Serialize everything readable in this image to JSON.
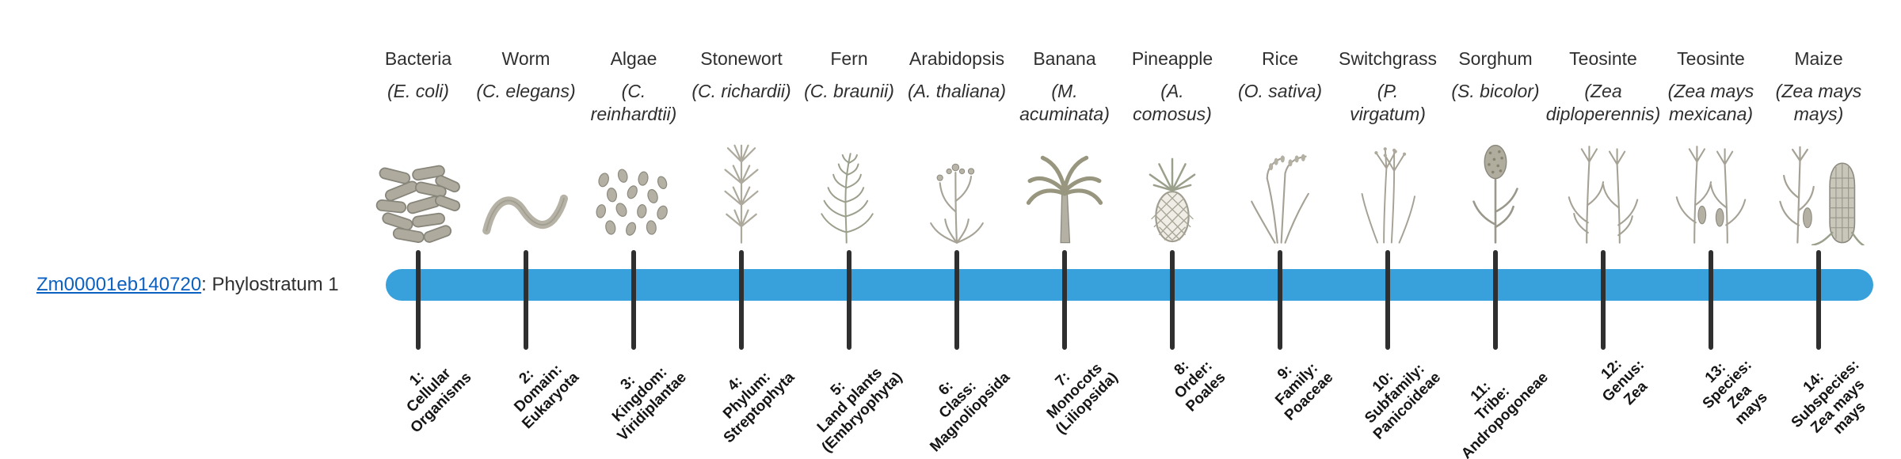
{
  "gene": {
    "id": "Zm00001eb140720",
    "suffix": ": Phylostratum 1"
  },
  "colors": {
    "bar": "#38a1dc",
    "tick": "#2f2f2f",
    "link": "#0b61c2",
    "name-text": "#2f2f2f",
    "stratum-text": "#151515"
  },
  "taxa": [
    {
      "common": "Bacteria",
      "scientific": "(E. coli)",
      "icon": "bacteria-icon",
      "stratum": "1:\nCellular\nOrganisms"
    },
    {
      "common": "Worm",
      "scientific": "(C. elegans)",
      "icon": "worm-icon",
      "stratum": "2:\nDomain:\nEukaryota"
    },
    {
      "common": "Algae",
      "scientific": "(C.\nreinhardtii)",
      "icon": "algae-icon",
      "stratum": "3:\nKingdom:\nViridiplantae"
    },
    {
      "common": "Stonewort",
      "scientific": "(C. richardii)",
      "icon": "stonewort-icon",
      "stratum": "4:\nPhylum:\nStreptophyta"
    },
    {
      "common": "Fern",
      "scientific": "(C. braunii)",
      "icon": "fern-icon",
      "stratum": "5:\nLand plants\n(Embryophyta)"
    },
    {
      "common": "Arabidopsis",
      "scientific": "(A. thaliana)",
      "icon": "arabidopsis-icon",
      "stratum": "6:\nClass:\nMagnoliopsida"
    },
    {
      "common": "Banana",
      "scientific": "(M.\nacuminata)",
      "icon": "banana-icon",
      "stratum": "7:\nMonocots\n(Liliopsida)"
    },
    {
      "common": "Pineapple",
      "scientific": "(A.\ncomosus)",
      "icon": "pineapple-icon",
      "stratum": "8:\nOrder:\nPoales"
    },
    {
      "common": "Rice",
      "scientific": "(O. sativa)",
      "icon": "rice-icon",
      "stratum": "9:\nFamily:\nPoaceae"
    },
    {
      "common": "Switchgrass",
      "scientific": "(P.\nvirgatum)",
      "icon": "switchgrass-icon",
      "stratum": "10:\nSubfamily:\nPanicoideae"
    },
    {
      "common": "Sorghum",
      "scientific": "(S. bicolor)",
      "icon": "sorghum-icon",
      "stratum": "11:\nTribe:\nAndropogoneae"
    },
    {
      "common": "Teosinte",
      "scientific": "(Zea\ndiploperennis)",
      "icon": "teosinte-diploperennis-icon",
      "stratum": "12:\nGenus:\nZea"
    },
    {
      "common": "Teosinte",
      "scientific": "(Zea mays\nmexicana)",
      "icon": "teosinte-mexicana-icon",
      "stratum": "13:\nSpecies:\nZea\nmays"
    },
    {
      "common": "Maize",
      "scientific": "(Zea mays\nmays)",
      "icon": "maize-icon",
      "stratum": "14:\nSubspecies:\nZea mays\nmays"
    }
  ]
}
